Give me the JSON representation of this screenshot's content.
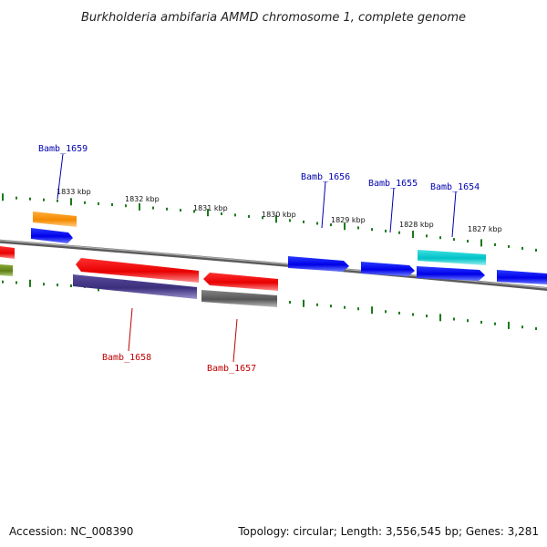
{
  "title": "Burkholderia ambifaria AMMD chromosome 1, complete genome",
  "footer": {
    "accession": "Accession: NC_008390",
    "topology": "Topology: circular; Length: 3,556,545 bp; Genes: 3,281"
  },
  "ruler_labels": [
    "1833 kbp",
    "1832 kbp",
    "1831 kbp",
    "1830 kbp",
    "1829 kbp",
    "1828 kbp",
    "1827 kbp"
  ],
  "gene_labels": [
    {
      "text": "Bamb_1659",
      "strand": "forward"
    },
    {
      "text": "Bamb_1656",
      "strand": "forward"
    },
    {
      "text": "Bamb_1655",
      "strand": "forward"
    },
    {
      "text": "Bamb_1654",
      "strand": "forward"
    },
    {
      "text": "Bamb_1658",
      "strand": "reverse"
    },
    {
      "text": "Bamb_1657",
      "strand": "reverse"
    }
  ],
  "colors": {
    "forward_label": "#0000b0",
    "reverse_label": "#c00000",
    "ruler": "#1a7a1a",
    "backbone": "#808080"
  }
}
